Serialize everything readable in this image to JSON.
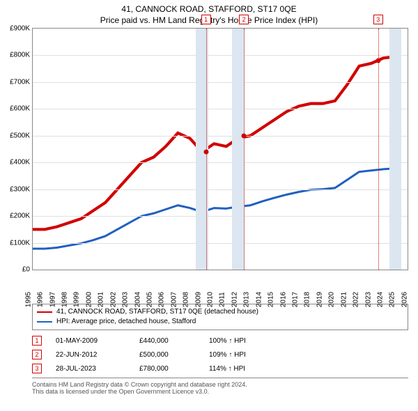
{
  "title": "41, CANNOCK ROAD, STAFFORD, ST17 0QE",
  "subtitle": "Price paid vs. HM Land Registry's House Price Index (HPI)",
  "chart": {
    "type": "line",
    "xlim": [
      1995,
      2026
    ],
    "ylim": [
      0,
      900000
    ],
    "ytick_step": 100000,
    "ytick_labels": [
      "£0",
      "£100K",
      "£200K",
      "£300K",
      "£400K",
      "£500K",
      "£600K",
      "£700K",
      "£800K",
      "£900K"
    ],
    "xticks": [
      1995,
      1996,
      1997,
      1998,
      1999,
      2000,
      2001,
      2002,
      2003,
      2004,
      2005,
      2006,
      2007,
      2008,
      2009,
      2010,
      2011,
      2012,
      2013,
      2014,
      2015,
      2016,
      2017,
      2018,
      2019,
      2020,
      2021,
      2022,
      2023,
      2024,
      2025,
      2026
    ],
    "grid_color": "#e0e0e0",
    "border_color": "#888888",
    "background_color": "#ffffff",
    "band_color": "#dbe6f0",
    "band_ranges": [
      [
        2008.5,
        2009.5
      ],
      [
        2011.5,
        2012.5
      ],
      [
        2024.5,
        2025.5
      ]
    ],
    "dash_color": "#d10000",
    "markers": [
      {
        "label": "1",
        "x": 2009.33,
        "y": 440000
      },
      {
        "label": "2",
        "x": 2012.47,
        "y": 500000
      },
      {
        "label": "3",
        "x": 2023.57,
        "y": 780000
      }
    ],
    "series": [
      {
        "name": "41, CANNOCK ROAD, STAFFORD, ST17 0QE (detached house)",
        "color": "#d10000",
        "line_width": 1.4,
        "points": [
          [
            1995,
            150000
          ],
          [
            1996,
            150000
          ],
          [
            1997,
            160000
          ],
          [
            1998,
            175000
          ],
          [
            1999,
            190000
          ],
          [
            2000,
            220000
          ],
          [
            2001,
            250000
          ],
          [
            2002,
            300000
          ],
          [
            2003,
            350000
          ],
          [
            2004,
            400000
          ],
          [
            2005,
            420000
          ],
          [
            2006,
            460000
          ],
          [
            2007,
            510000
          ],
          [
            2008,
            490000
          ],
          [
            2009,
            440000
          ],
          [
            2010,
            470000
          ],
          [
            2011,
            460000
          ],
          [
            2012,
            490000
          ],
          [
            2013,
            500000
          ],
          [
            2014,
            530000
          ],
          [
            2015,
            560000
          ],
          [
            2016,
            590000
          ],
          [
            2017,
            610000
          ],
          [
            2018,
            620000
          ],
          [
            2019,
            620000
          ],
          [
            2020,
            630000
          ],
          [
            2021,
            690000
          ],
          [
            2022,
            760000
          ],
          [
            2023,
            770000
          ],
          [
            2024,
            790000
          ],
          [
            2025,
            795000
          ]
        ]
      },
      {
        "name": "HPI: Average price, detached house, Stafford",
        "color": "#2060c0",
        "line_width": 1.0,
        "points": [
          [
            1995,
            78000
          ],
          [
            1996,
            78000
          ],
          [
            1997,
            82000
          ],
          [
            1998,
            90000
          ],
          [
            1999,
            98000
          ],
          [
            2000,
            110000
          ],
          [
            2001,
            125000
          ],
          [
            2002,
            150000
          ],
          [
            2003,
            175000
          ],
          [
            2004,
            200000
          ],
          [
            2005,
            210000
          ],
          [
            2006,
            225000
          ],
          [
            2007,
            240000
          ],
          [
            2008,
            230000
          ],
          [
            2009,
            215000
          ],
          [
            2010,
            230000
          ],
          [
            2011,
            228000
          ],
          [
            2012,
            235000
          ],
          [
            2013,
            240000
          ],
          [
            2014,
            255000
          ],
          [
            2015,
            268000
          ],
          [
            2016,
            280000
          ],
          [
            2017,
            290000
          ],
          [
            2018,
            298000
          ],
          [
            2019,
            300000
          ],
          [
            2020,
            305000
          ],
          [
            2021,
            335000
          ],
          [
            2022,
            365000
          ],
          [
            2023,
            370000
          ],
          [
            2024,
            375000
          ],
          [
            2025,
            378000
          ]
        ]
      }
    ]
  },
  "legend": {
    "series1": "41, CANNOCK ROAD, STAFFORD, ST17 0QE (detached house)",
    "series2": "HPI: Average price, detached house, Stafford"
  },
  "transactions": [
    {
      "n": "1",
      "date": "01-MAY-2009",
      "price": "£440,000",
      "hpi": "100% ↑ HPI"
    },
    {
      "n": "2",
      "date": "22-JUN-2012",
      "price": "£500,000",
      "hpi": "109% ↑ HPI"
    },
    {
      "n": "3",
      "date": "28-JUL-2023",
      "price": "£780,000",
      "hpi": "114% ↑ HPI"
    }
  ],
  "footer": {
    "line1": "Contains HM Land Registry data © Crown copyright and database right 2024.",
    "line2": "This data is licensed under the Open Government Licence v3.0."
  },
  "colors": {
    "red": "#d10000",
    "blue": "#2060c0"
  }
}
